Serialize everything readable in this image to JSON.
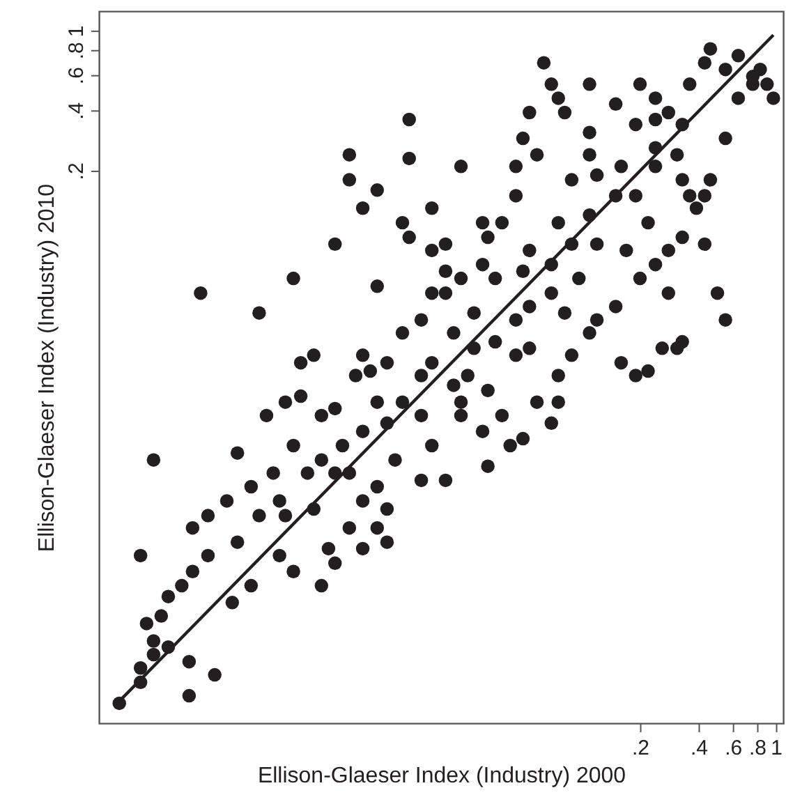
{
  "chart_data": {
    "type": "scatter",
    "xlabel": "Ellison-Glaeser Index (Industry) 2000",
    "ylabel": "Ellison-Glaeser Index (Industry) 2010",
    "log": "xy",
    "xlim": [
      0.00033,
      1.09
    ],
    "ylim": [
      0.00035,
      1.25
    ],
    "xticks": [
      {
        "value": 0.2,
        "label": ".2"
      },
      {
        "value": 0.4,
        "label": ".4"
      },
      {
        "value": 0.6,
        "label": ".6"
      },
      {
        "value": 0.8,
        "label": ".8"
      },
      1
    ],
    "yticks": [
      {
        "value": 0.2,
        "label": ".2"
      },
      {
        "value": 0.4,
        "label": ".4"
      },
      {
        "value": 0.6,
        "label": ".6"
      },
      {
        "value": 0.8,
        "label": ".8"
      },
      1
    ],
    "series": [
      {
        "type": "scatter",
        "color": "#231f20",
        "marker": "circle",
        "x": [
          0.00042,
          0.00054,
          0.00054,
          0.00063,
          0.00063,
          0.00058,
          0.00075,
          0.00096,
          0.0013,
          0.00096,
          0.00063,
          0.00054,
          0.00069,
          0.00075,
          0.00088,
          0.001,
          0.0012,
          0.001,
          0.0012,
          0.0015,
          0.0011,
          0.0022,
          0.0033,
          0.0017,
          0.0024,
          0.003,
          0.0036,
          0.0046,
          0.0054,
          0.0033,
          0.0026,
          0.002,
          0.0028,
          0.0039,
          0.0046,
          0.0059,
          0.0075,
          0.0089,
          0.0069,
          0.0082,
          0.01,
          0.012,
          0.015,
          0.017,
          0.02,
          0.013,
          0.017,
          0.02,
          0.024,
          0.031,
          0.033,
          0.022,
          0.028,
          0.036,
          0.046,
          0.054,
          0.07,
          0.033,
          0.024,
          0.017,
          0.011,
          0.0089,
          0.0064,
          0.005,
          0.0033,
          0.002,
          0.0016,
          0.0046,
          0.0075,
          0.0042,
          0.0054,
          0.0089,
          0.01,
          0.015,
          0.02,
          0.039,
          0.059,
          0.076,
          0.089,
          0.11,
          0.12,
          0.15,
          0.2,
          0.24,
          0.28,
          0.33,
          0.39,
          0.46,
          0.55,
          0.64,
          0.76,
          0.36,
          0.43,
          0.46,
          0.55,
          0.64,
          0.76,
          0.83,
          0.9,
          0.97,
          0.33,
          0.28,
          0.24,
          0.2,
          0.15,
          0.11,
          0.064,
          0.07,
          0.076,
          0.082,
          0.11,
          0.16,
          0.22,
          0.26,
          0.22,
          0.33,
          0.43,
          0.5,
          0.55,
          0.43,
          0.33,
          0.24,
          0.15,
          0.11,
          0.076,
          0.054,
          0.046,
          0.05,
          0.059,
          0.046,
          0.024,
          0.013,
          0.0064,
          0.0089,
          0.013,
          0.017,
          0.012,
          0.0089,
          0.0075,
          0.0054,
          0.0064,
          0.024,
          0.031,
          0.05,
          0.07,
          0.076,
          0.022,
          0.015,
          0.0054,
          0.0075,
          0.003,
          0.0022,
          0.0017,
          0.026,
          0.012,
          0.017,
          0.036,
          0.05,
          0.07,
          0.089,
          0.12,
          0.097,
          0.17,
          0.043,
          0.033,
          0.046,
          0.082,
          0.028,
          0.0075,
          0.19,
          0.31,
          0.36,
          0.28,
          0.16,
          0.19,
          0.015,
          0.01,
          0.0064,
          0.01,
          0.0028,
          0.0036,
          0.0042,
          0.054,
          0.031,
          0.02,
          0.039,
          0.089,
          0.12,
          0.19,
          0.24,
          0.11,
          0.054,
          0.24,
          0.31
        ],
        "values": [
          0.00044,
          0.00066,
          0.00056,
          0.00077,
          0.0009,
          0.0011,
          0.00084,
          0.00071,
          0.00061,
          0.00048,
          0.0072,
          0.0024,
          0.0012,
          0.0015,
          0.0017,
          0.002,
          0.0024,
          0.0033,
          0.0038,
          0.0045,
          0.049,
          0.039,
          0.058,
          0.0078,
          0.012,
          0.014,
          0.015,
          0.012,
          0.013,
          0.0085,
          0.0062,
          0.0053,
          0.0045,
          0.0062,
          0.0072,
          0.0085,
          0.01,
          0.014,
          0.019,
          0.02,
          0.022,
          0.031,
          0.036,
          0.049,
          0.063,
          0.093,
          0.08,
          0.049,
          0.058,
          0.11,
          0.093,
          0.031,
          0.026,
          0.028,
          0.036,
          0.042,
          0.049,
          0.016,
          0.012,
          0.0085,
          0.0072,
          0.0053,
          0.0033,
          0.0026,
          0.002,
          0.0017,
          0.0014,
          0.0017,
          0.0026,
          0.0041,
          0.0022,
          0.0033,
          0.0041,
          0.0057,
          0.0057,
          0.012,
          0.014,
          0.019,
          0.024,
          0.031,
          0.036,
          0.042,
          0.058,
          0.068,
          0.08,
          0.093,
          0.13,
          0.18,
          0.29,
          0.46,
          0.59,
          0.54,
          0.69,
          0.81,
          0.64,
          0.75,
          0.54,
          0.64,
          0.54,
          0.46,
          0.34,
          0.39,
          0.46,
          0.54,
          0.43,
          0.54,
          0.69,
          0.54,
          0.46,
          0.39,
          0.31,
          0.21,
          0.11,
          0.026,
          0.02,
          0.028,
          0.086,
          0.049,
          0.036,
          0.15,
          0.18,
          0.26,
          0.15,
          0.12,
          0.11,
          0.08,
          0.15,
          0.29,
          0.24,
          0.21,
          0.21,
          0.36,
          0.24,
          0.16,
          0.23,
          0.13,
          0.11,
          0.053,
          0.13,
          0.086,
          0.18,
          0.014,
          0.01,
          0.0092,
          0.011,
          0.014,
          0.017,
          0.012,
          0.0062,
          0.0045,
          0.0038,
          0.0038,
          0.0028,
          0.019,
          0.014,
          0.022,
          0.058,
          0.063,
          0.068,
          0.086,
          0.086,
          0.058,
          0.08,
          0.0085,
          0.0067,
          0.024,
          0.039,
          0.039,
          0.024,
          0.15,
          0.24,
          0.15,
          0.049,
          0.022,
          0.019,
          0.019,
          0.011,
          0.0062,
          0.0028,
          0.0024,
          0.022,
          0.024,
          0.026,
          0.068,
          0.086,
          0.11,
          0.18,
          0.19,
          0.34,
          0.21,
          0.24,
          0.39,
          0.36,
          0.026
        ]
      },
      {
        "type": "line",
        "color": "#231f20",
        "x": [
          0.00041,
          0.97
        ],
        "values": [
          0.00044,
          0.95
        ]
      }
    ]
  }
}
